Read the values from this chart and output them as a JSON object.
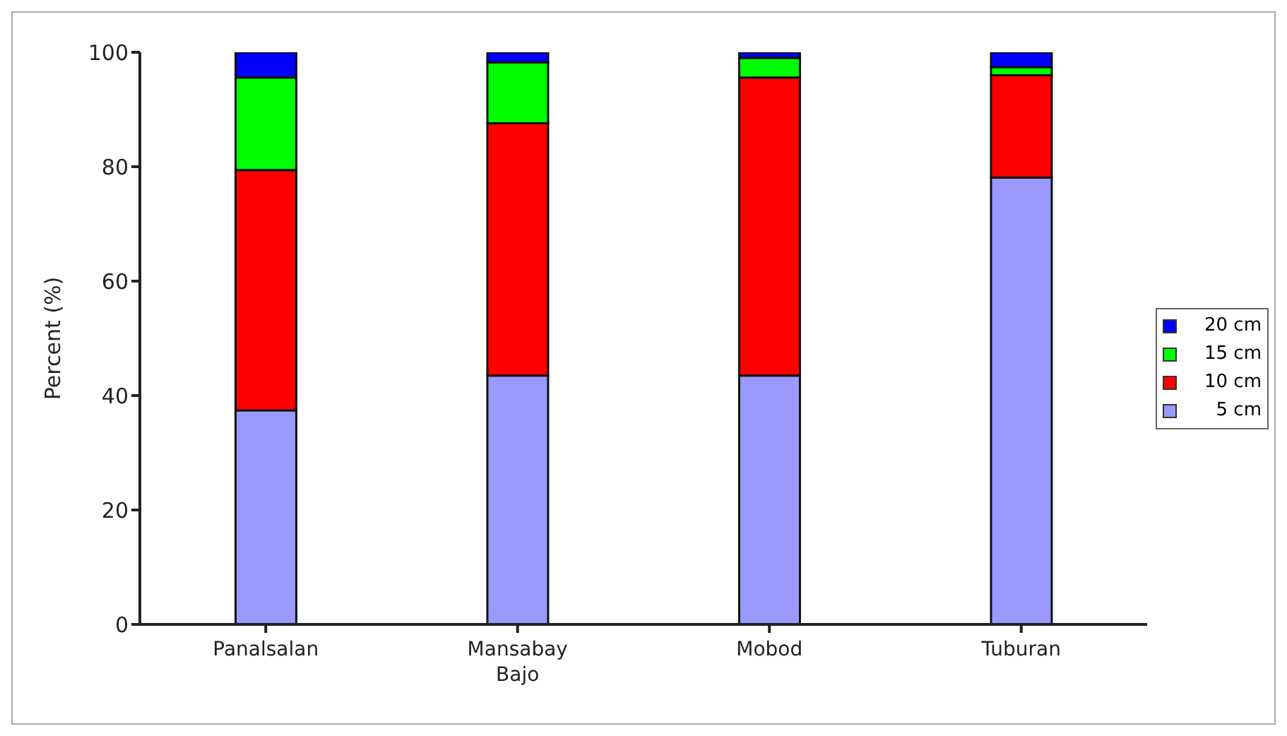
{
  "chart_data": {
    "type": "bar",
    "stacked": true,
    "ylabel": "Percent (%)",
    "categories": [
      "Panalsalan",
      "Mansabay Bajo",
      "Mobod",
      "Tuburan"
    ],
    "series": [
      {
        "name": "5 cm",
        "color": "#9999ff",
        "values": [
          37.4,
          43.5,
          43.5,
          78.1
        ]
      },
      {
        "name": "10 cm",
        "color": "#ff0000",
        "values": [
          42.0,
          44.1,
          52.1,
          17.9
        ]
      },
      {
        "name": "15 cm",
        "color": "#00ff00",
        "values": [
          16.2,
          10.6,
          3.4,
          1.4
        ]
      },
      {
        "name": "20 cm",
        "color": "#0000ff",
        "values": [
          4.4,
          1.8,
          1.0,
          2.6
        ]
      }
    ],
    "ylim": [
      0,
      100
    ],
    "yticks": [
      0,
      20,
      40,
      60,
      80,
      100
    ],
    "grid": false,
    "legend": "right"
  }
}
